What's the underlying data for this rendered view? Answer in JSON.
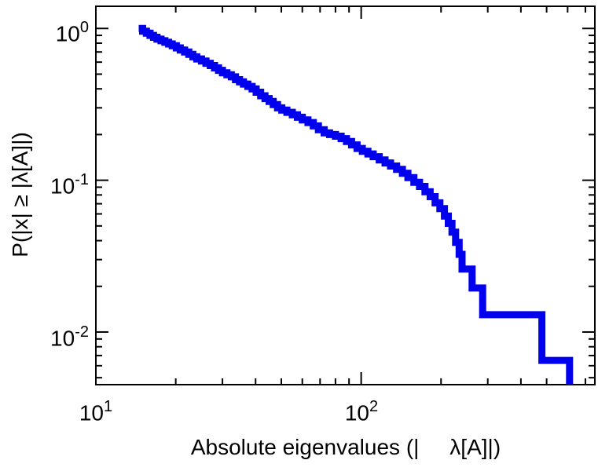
{
  "figure": {
    "background": "#ffffff",
    "frame_color": "#000000",
    "curve_color": "#0000ee"
  },
  "axes": {
    "x_label": "Absolute eigenvalues (|     λ[A]|)",
    "y_label": "P(|x|  ≥  |λ[A]|)",
    "x_ticks": [
      {
        "text": "10",
        "exp": "1",
        "value": 10
      },
      {
        "text": "10",
        "exp": "2",
        "value": 100
      }
    ],
    "y_ticks": [
      {
        "text": "10",
        "exp": "0",
        "value": 1
      },
      {
        "text": "10",
        "exp": "-1",
        "value": 0.1
      },
      {
        "text": "10",
        "exp": "-2",
        "value": 0.01
      }
    ]
  },
  "chart_data": {
    "type": "line",
    "style": "ccdf-staircase",
    "scale": "log-log",
    "title": "",
    "xlabel": "Absolute eigenvalues (|λ[A]|)",
    "ylabel": "P(|x| ≥ |λ[A]|)",
    "xlim": [
      10,
      760
    ],
    "ylim": [
      0.0045,
      1.4
    ],
    "grid": false,
    "legend": "none",
    "series": [
      {
        "name": "eigenvalue-ccdf",
        "color": "#0000ee",
        "points": [
          [
            14.5,
            1.0
          ],
          [
            15.0,
            0.96
          ],
          [
            15.5,
            0.93
          ],
          [
            16.0,
            0.9
          ],
          [
            16.5,
            0.875
          ],
          [
            17.0,
            0.85
          ],
          [
            17.6,
            0.83
          ],
          [
            18.2,
            0.81
          ],
          [
            18.8,
            0.79
          ],
          [
            19.4,
            0.77
          ],
          [
            20.1,
            0.745
          ],
          [
            20.8,
            0.72
          ],
          [
            21.6,
            0.7
          ],
          [
            22.4,
            0.675
          ],
          [
            23.2,
            0.65
          ],
          [
            24.0,
            0.63
          ],
          [
            25.0,
            0.61
          ],
          [
            26.0,
            0.59
          ],
          [
            27.0,
            0.57
          ],
          [
            28.0,
            0.55
          ],
          [
            29.0,
            0.53
          ],
          [
            30.0,
            0.51
          ],
          [
            31.2,
            0.495
          ],
          [
            32.4,
            0.48
          ],
          [
            33.6,
            0.46
          ],
          [
            34.8,
            0.445
          ],
          [
            36.0,
            0.43
          ],
          [
            37.4,
            0.415
          ],
          [
            38.8,
            0.4
          ],
          [
            40.2,
            0.38
          ],
          [
            41.8,
            0.36
          ],
          [
            43.4,
            0.345
          ],
          [
            45.0,
            0.33
          ],
          [
            46.6,
            0.315
          ],
          [
            48.4,
            0.3
          ],
          [
            50.2,
            0.29
          ],
          [
            52.5,
            0.28
          ],
          [
            55.0,
            0.27
          ],
          [
            57.5,
            0.26
          ],
          [
            60.0,
            0.25
          ],
          [
            63.0,
            0.24
          ],
          [
            66.0,
            0.228
          ],
          [
            69.0,
            0.215
          ],
          [
            72.5,
            0.205
          ],
          [
            76.0,
            0.2
          ],
          [
            80.0,
            0.195
          ],
          [
            84.0,
            0.188
          ],
          [
            88.0,
            0.18
          ],
          [
            92.0,
            0.171
          ],
          [
            96.5,
            0.162
          ],
          [
            101,
            0.155
          ],
          [
            106,
            0.149
          ],
          [
            111,
            0.143
          ],
          [
            117,
            0.136
          ],
          [
            123,
            0.13
          ],
          [
            129,
            0.124
          ],
          [
            136,
            0.118
          ],
          [
            143,
            0.111
          ],
          [
            150,
            0.104
          ],
          [
            158,
            0.097
          ],
          [
            166,
            0.091
          ],
          [
            174,
            0.084
          ],
          [
            182,
            0.078
          ],
          [
            190,
            0.071
          ],
          [
            198,
            0.065
          ],
          [
            206,
            0.058
          ],
          [
            213,
            0.052
          ],
          [
            220,
            0.0455
          ],
          [
            227,
            0.039
          ],
          [
            234,
            0.0325
          ],
          [
            240,
            0.026
          ],
          [
            262,
            0.0195
          ],
          [
            287,
            0.013
          ],
          [
            480,
            0.0065
          ],
          [
            610,
            0.0045
          ]
        ]
      }
    ]
  }
}
